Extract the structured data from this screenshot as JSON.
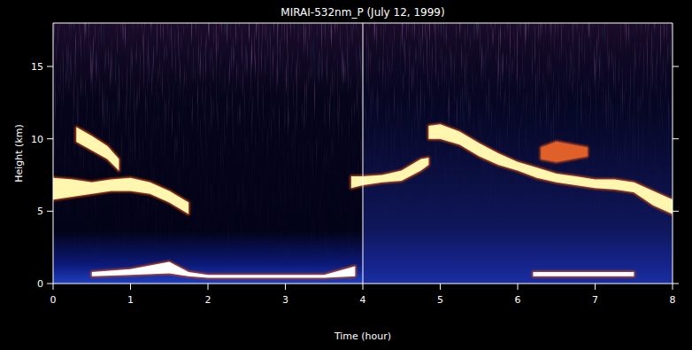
{
  "chart_data": {
    "type": "range_area",
    "title": "MIRAI-532nm_P (July 12, 1999)",
    "x_label": "Time (hour)",
    "y_label": "Height (km)",
    "xlim": [
      0,
      8
    ],
    "xticks": [
      0,
      1,
      2,
      3,
      4,
      5,
      6,
      7,
      8
    ],
    "ylim": [
      0,
      18
    ],
    "yticks": [
      0,
      5,
      10,
      15
    ],
    "vlines": [
      4
    ],
    "series": [
      {
        "color": "#fff6b0",
        "x": [
          0,
          0.25,
          0.5,
          0.75,
          1.0,
          1.25,
          1.5,
          1.75
        ],
        "base": [
          5.8,
          6.0,
          6.2,
          6.4,
          6.4,
          6.2,
          5.6,
          4.8
        ],
        "top": [
          7.3,
          7.2,
          7.0,
          7.2,
          7.3,
          7.0,
          6.4,
          5.6
        ]
      },
      {
        "color": "#fff6b0",
        "x": [
          0.3,
          0.5,
          0.7,
          0.85
        ],
        "base": [
          9.8,
          9.2,
          8.6,
          7.8
        ],
        "top": [
          10.8,
          10.2,
          9.5,
          8.6
        ]
      },
      {
        "color": "#fff6b0",
        "x": [
          3.85,
          4.0,
          4.25,
          4.5,
          4.75,
          4.85
        ],
        "base": [
          6.6,
          6.8,
          7.0,
          7.1,
          7.8,
          8.2
        ],
        "top": [
          7.4,
          7.4,
          7.5,
          7.8,
          8.6,
          8.7
        ]
      },
      {
        "color": "#fff6b0",
        "x": [
          4.85,
          5.0,
          5.25,
          5.5,
          5.75,
          6.0,
          6.25,
          6.5,
          6.75,
          7.0,
          7.25,
          7.5,
          7.75,
          8.0
        ],
        "base": [
          10.0,
          10.0,
          9.6,
          8.8,
          8.2,
          7.8,
          7.3,
          7.0,
          6.8,
          6.6,
          6.5,
          6.3,
          5.4,
          4.8
        ],
        "top": [
          10.9,
          11.0,
          10.5,
          9.7,
          9.0,
          8.4,
          8.0,
          7.6,
          7.4,
          7.2,
          7.2,
          7.0,
          6.4,
          5.8
        ]
      },
      {
        "color": "#e0602a",
        "x": [
          6.3,
          6.5,
          6.7,
          6.9
        ],
        "base": [
          8.6,
          8.4,
          8.6,
          8.8
        ],
        "top": [
          9.4,
          9.8,
          9.6,
          9.4
        ]
      },
      {
        "color": "#ffffff",
        "x": [
          0.5,
          1.0,
          1.5,
          1.75,
          2.0,
          2.5,
          3.0,
          3.5,
          3.9,
          5.0,
          6.2,
          6.5,
          7.0,
          7.5
        ],
        "base": [
          0.5,
          0.6,
          0.7,
          0.5,
          0.4,
          0.4,
          0.4,
          0.4,
          0.5,
          null,
          0.5,
          0.5,
          0.5,
          0.5
        ],
        "top": [
          0.8,
          1.0,
          1.5,
          0.8,
          0.6,
          0.6,
          0.6,
          0.6,
          1.2,
          null,
          0.8,
          0.8,
          0.8,
          0.8
        ]
      }
    ]
  }
}
